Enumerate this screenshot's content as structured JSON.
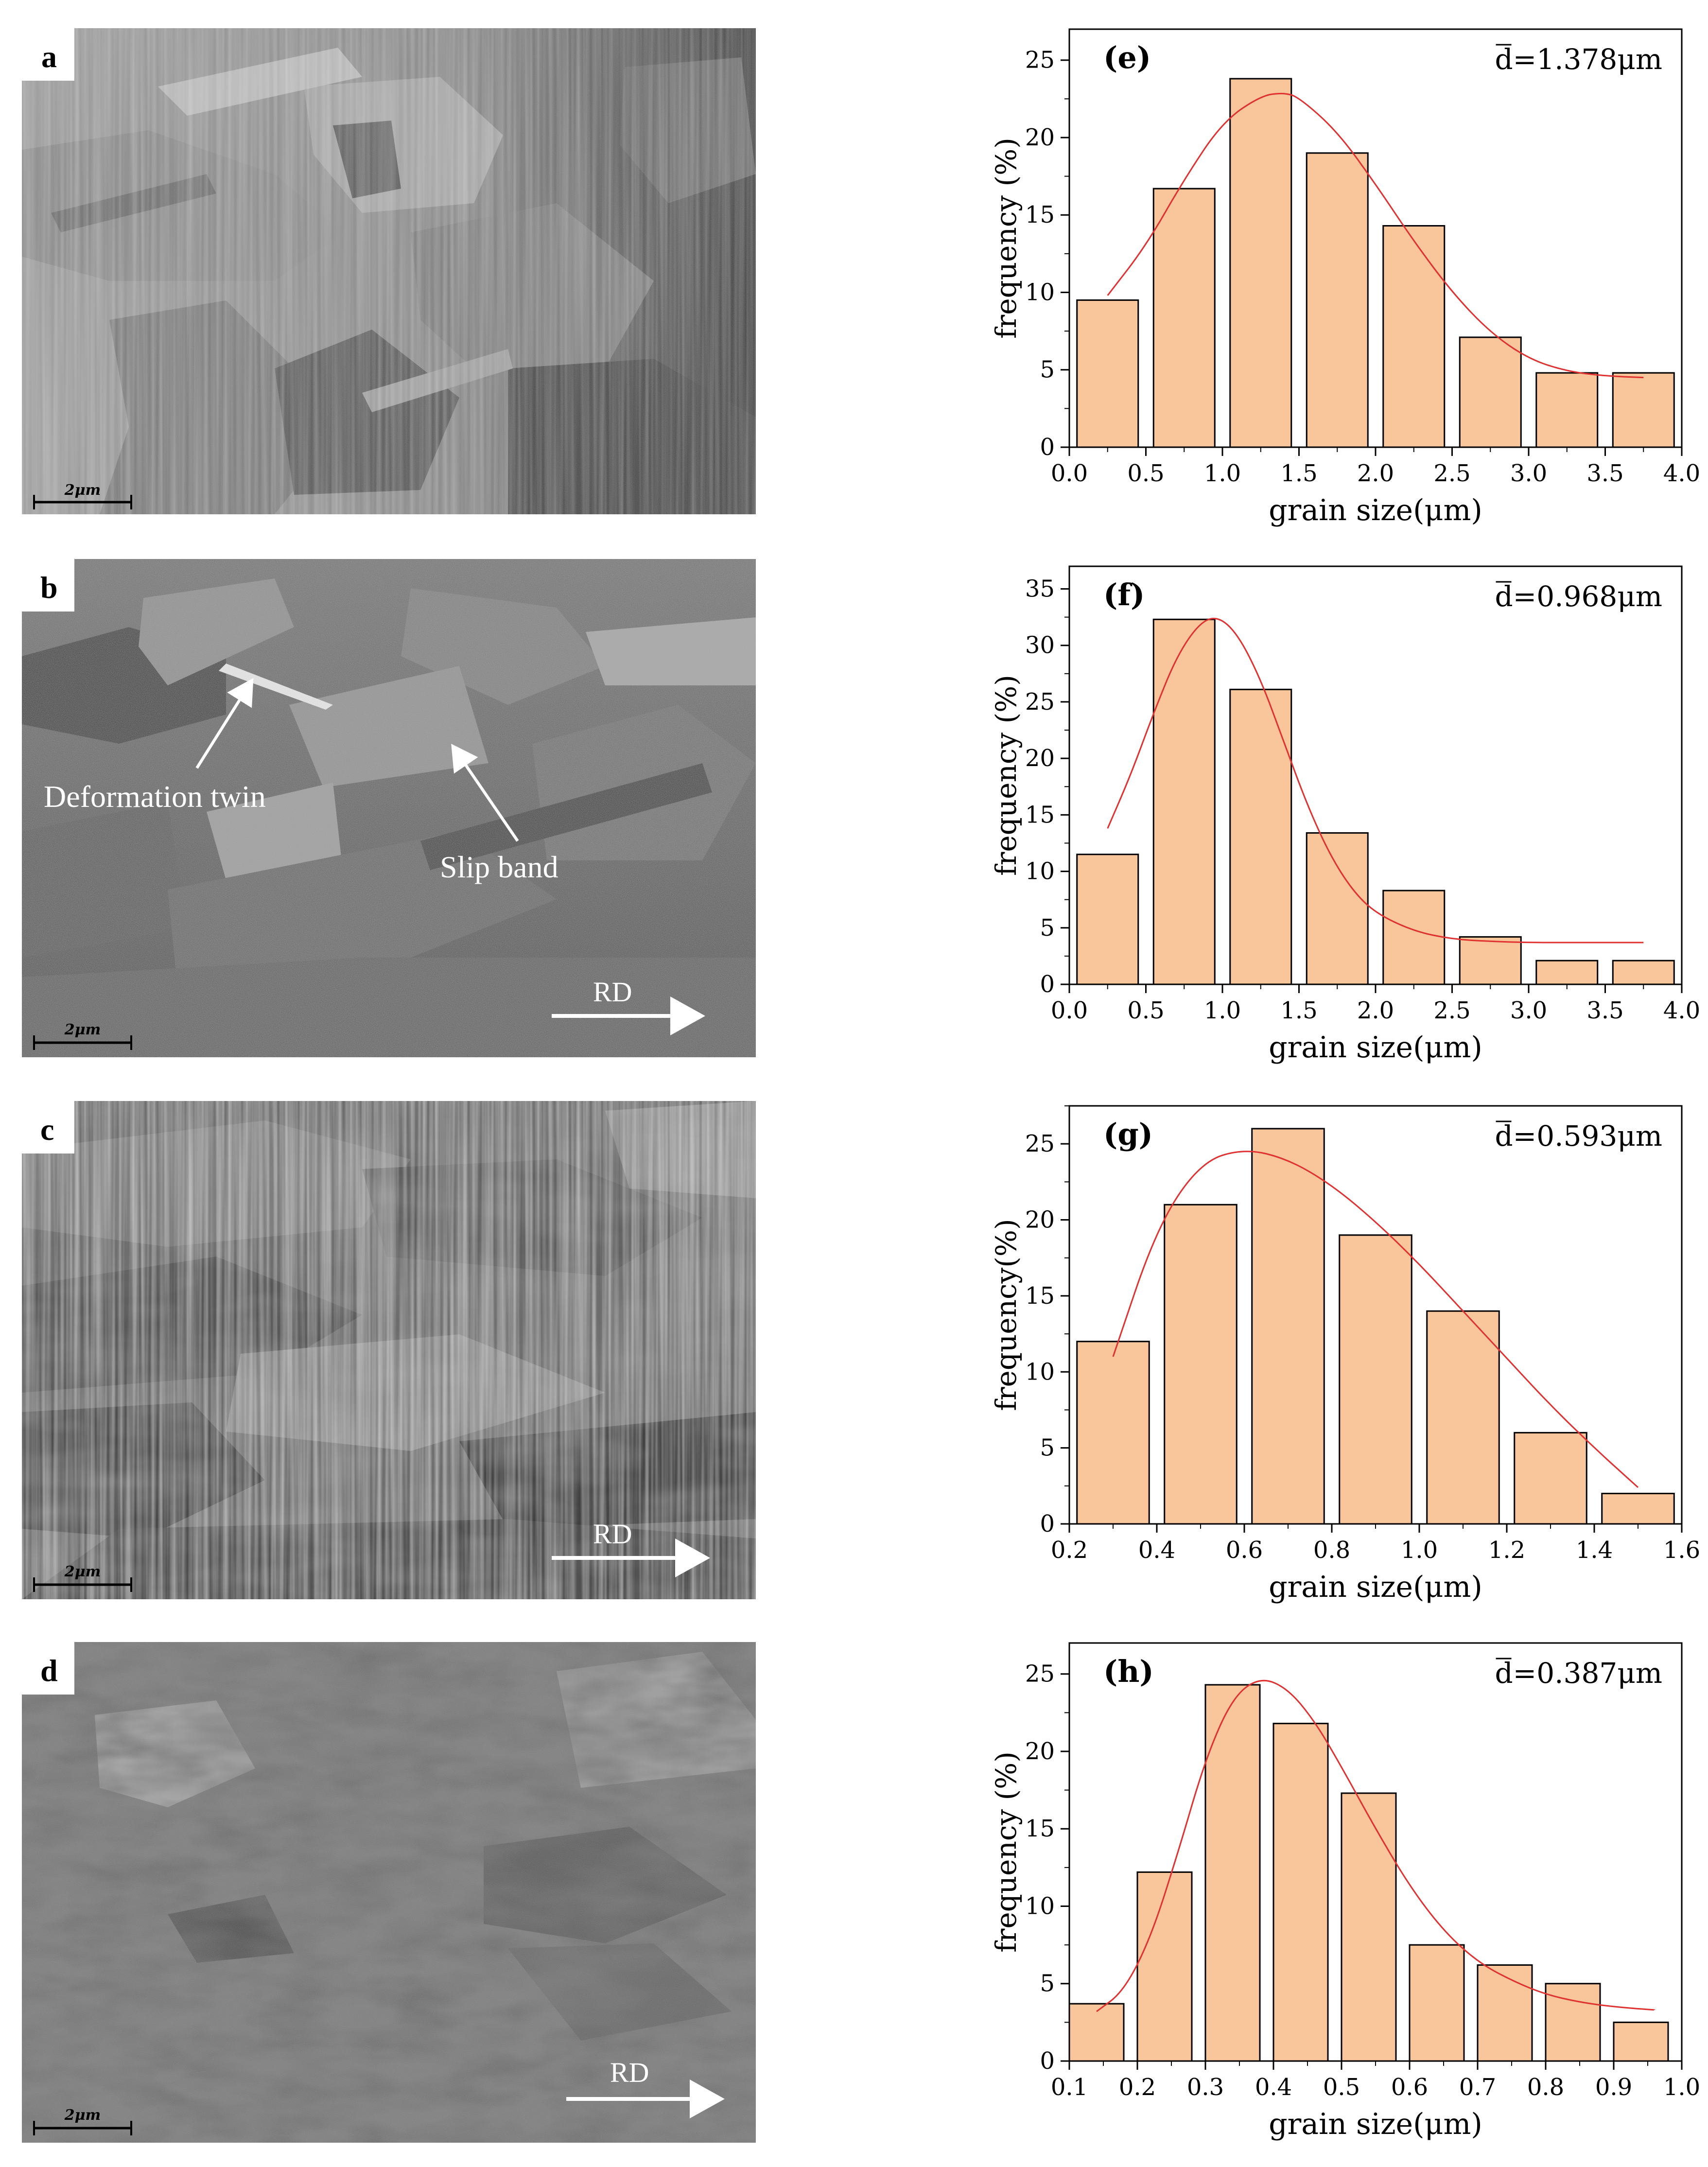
{
  "micrographs": [
    {
      "label": "a",
      "scale_bar": "2μm",
      "annotations": []
    },
    {
      "label": "b",
      "scale_bar": "2μm",
      "annotations": [
        "Deformation twin",
        "Slip band",
        "RD"
      ]
    },
    {
      "label": "c",
      "scale_bar": "2μm",
      "annotations": [
        "RD"
      ]
    },
    {
      "label": "d",
      "scale_bar": "2μm",
      "annotations": [
        "RD"
      ]
    }
  ],
  "colors": {
    "bar_fill": "#f9c59a",
    "bar_stroke": "#000000",
    "fit_curve": "#e03030"
  },
  "chart_data": [
    {
      "type": "bar",
      "panel": "(e)",
      "mean_label": "d=1.378μm",
      "xlabel": "grain size(μm)",
      "ylabel": "frequency (%)",
      "xlim": [
        0.0,
        4.0
      ],
      "ylim": [
        0,
        27
      ],
      "xticks": [
        "0.0",
        "0.5",
        "1.0",
        "1.5",
        "2.0",
        "2.5",
        "3.0",
        "3.5",
        "4.0"
      ],
      "yticks": [
        "0",
        "5",
        "10",
        "15",
        "20",
        "25"
      ],
      "bar_width": 0.4,
      "x": [
        0.25,
        0.75,
        1.25,
        1.75,
        2.25,
        2.75,
        3.25,
        3.75
      ],
      "values": [
        9.5,
        16.7,
        23.8,
        19.0,
        14.3,
        7.1,
        4.8,
        4.8
      ],
      "fit_curve": {
        "x": [
          0.25,
          0.5,
          0.75,
          1.0,
          1.25,
          1.4,
          1.5,
          1.75,
          2.0,
          2.25,
          2.5,
          2.75,
          3.0,
          3.25,
          3.5,
          3.75
        ],
        "y": [
          9.8,
          13.0,
          17.3,
          21.0,
          22.7,
          22.9,
          22.6,
          20.4,
          17.0,
          13.3,
          10.0,
          7.4,
          5.7,
          4.9,
          4.6,
          4.5
        ]
      }
    },
    {
      "type": "bar",
      "panel": "(f)",
      "mean_label": "d=0.968μm",
      "xlabel": "grain size(μm)",
      "ylabel": "frequency (%)",
      "xlim": [
        0.0,
        4.0
      ],
      "ylim": [
        0,
        37
      ],
      "xticks": [
        "0.0",
        "0.5",
        "1.0",
        "1.5",
        "2.0",
        "2.5",
        "3.0",
        "3.5",
        "4.0"
      ],
      "yticks": [
        "0",
        "5",
        "10",
        "15",
        "20",
        "25",
        "30",
        "35"
      ],
      "bar_width": 0.4,
      "x": [
        0.25,
        0.75,
        1.25,
        1.75,
        2.25,
        2.75,
        3.25,
        3.75
      ],
      "values": [
        11.5,
        32.3,
        26.1,
        13.4,
        8.3,
        4.2,
        2.1,
        2.1
      ],
      "fit_curve": {
        "x": [
          0.25,
          0.4,
          0.55,
          0.7,
          0.85,
          0.97,
          1.1,
          1.25,
          1.4,
          1.55,
          1.7,
          1.85,
          2.0,
          2.25,
          2.5,
          2.75,
          3.0,
          3.25,
          3.5,
          3.75
        ],
        "y": [
          13.8,
          18.5,
          24.0,
          29.0,
          32.0,
          32.6,
          31.0,
          27.0,
          21.5,
          16.0,
          11.5,
          8.3,
          6.3,
          4.7,
          4.0,
          3.8,
          3.7,
          3.7,
          3.7,
          3.7
        ]
      }
    },
    {
      "type": "bar",
      "panel": "(g)",
      "mean_label": "d=0.593μm",
      "xlabel": "grain size(μm)",
      "ylabel": "frequency(%)",
      "xlim": [
        0.2,
        1.6
      ],
      "ylim": [
        0,
        27.5
      ],
      "xticks": [
        "0.2",
        "0.4",
        "0.6",
        "0.8",
        "1.0",
        "1.2",
        "1.4",
        "1.6"
      ],
      "yticks": [
        "0",
        "5",
        "10",
        "15",
        "20",
        "25"
      ],
      "bar_width": 0.165,
      "x": [
        0.3,
        0.5,
        0.7,
        0.9,
        1.1,
        1.3,
        1.5
      ],
      "values": [
        12,
        21,
        26,
        19,
        14,
        6,
        2
      ],
      "fit_curve": {
        "x": [
          0.3,
          0.4,
          0.5,
          0.6,
          0.7,
          0.8,
          0.9,
          1.0,
          1.1,
          1.2,
          1.3,
          1.4,
          1.5
        ],
        "y": [
          11.0,
          19.5,
          23.8,
          24.7,
          24.0,
          22.3,
          19.9,
          17.1,
          14.0,
          10.9,
          7.8,
          5.0,
          2.4
        ]
      }
    },
    {
      "type": "bar",
      "panel": "(h)",
      "mean_label": "d=0.387μm",
      "xlabel": "grain size(μm)",
      "ylabel": "frequency (%)",
      "xlim": [
        0.1,
        1.0
      ],
      "ylim": [
        0,
        27
      ],
      "xticks": [
        "0.1",
        "0.2",
        "0.3",
        "0.4",
        "0.5",
        "0.6",
        "0.7",
        "0.8",
        "0.9",
        "1.0"
      ],
      "yticks": [
        "0",
        "5",
        "10",
        "15",
        "20",
        "25"
      ],
      "bar_width": 0.08,
      "x": [
        0.14,
        0.24,
        0.34,
        0.44,
        0.54,
        0.64,
        0.74,
        0.84,
        0.94
      ],
      "values": [
        3.7,
        12.2,
        24.3,
        21.8,
        17.3,
        7.5,
        6.2,
        5.0,
        2.5
      ],
      "fit_curve": {
        "x": [
          0.14,
          0.18,
          0.22,
          0.26,
          0.3,
          0.34,
          0.38,
          0.42,
          0.46,
          0.5,
          0.55,
          0.6,
          0.65,
          0.7,
          0.75,
          0.8,
          0.85,
          0.9,
          0.96
        ],
        "y": [
          3.2,
          4.5,
          8.0,
          13.5,
          19.5,
          23.5,
          24.8,
          24.1,
          22.0,
          19.0,
          15.0,
          11.3,
          8.4,
          6.4,
          5.2,
          4.3,
          3.8,
          3.5,
          3.3
        ]
      }
    }
  ]
}
